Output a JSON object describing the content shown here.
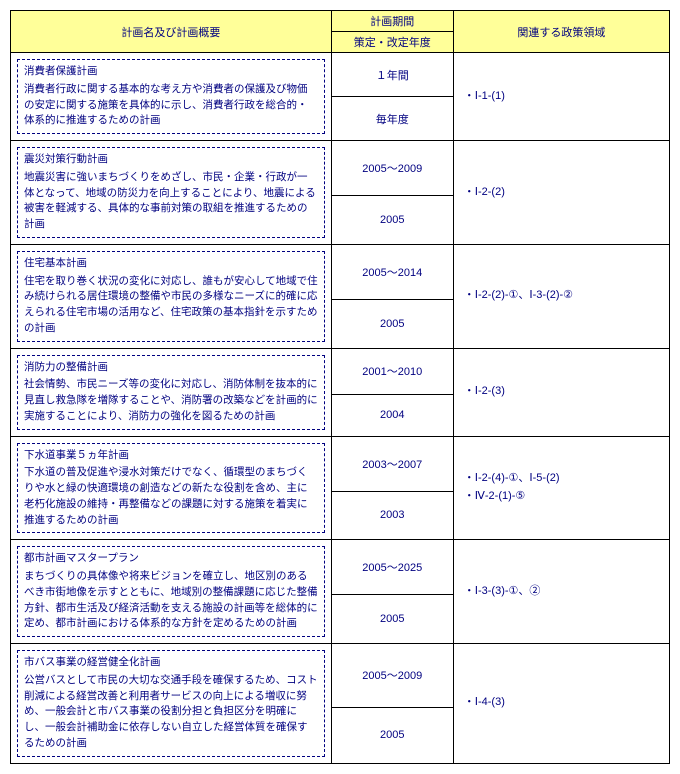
{
  "headers": {
    "col1": "計画名及び計画概要",
    "col2_top": "計画期間",
    "col2_bottom": "策定・改定年度",
    "col3": "関連する政策領域"
  },
  "rows": [
    {
      "title": "消費者保護計画",
      "desc": "消費者行政に関する基本的な考え方や消費者の保護及び物価の安定に関する施策を具体的に示し、消費者行政を総合的・体系的に推進するための計画",
      "period": "１年間",
      "revision": "毎年度",
      "policy": "・Ⅰ-1-(1)"
    },
    {
      "title": "震災対策行動計画",
      "desc": "地震災害に強いまちづくりをめざし、市民・企業・行政が一体となって、地域の防災力を向上することにより、地震による被害を軽減する、具体的な事前対策の取組を推進するための計画",
      "period": "2005～2009",
      "revision": "2005",
      "policy": "・Ⅰ-2-(2)"
    },
    {
      "title": "住宅基本計画",
      "desc": "住宅を取り巻く状況の変化に対応し、誰もが安心して地域で住み続けられる居住環境の整備や市民の多様なニーズに的確に応えられる住宅市場の活用など、住宅政策の基本指針を示すための計画",
      "period": "2005～2014",
      "revision": "2005",
      "policy": "・Ⅰ-2-(2)-①、Ⅰ-3-(2)-②"
    },
    {
      "title": "消防力の整備計画",
      "desc": "社会情勢、市民ニーズ等の変化に対応し、消防体制を抜本的に見直し救急隊を増隊することや、消防署の改築などを計画的に実施することにより、消防力の強化を図るための計画",
      "period": "2001～2010",
      "revision": "2004",
      "policy": "・Ⅰ-2-(3)"
    },
    {
      "title": "下水道事業５ヵ年計画",
      "desc": "下水道の普及促進や浸水対策だけでなく、循環型のまちづくりや水と緑の快適環境の創造などの新たな役割を含め、主に老朽化施設の維持・再整備などの課題に対する施策を着実に推進するための計画",
      "period": "2003～2007",
      "revision": "2003",
      "policy": "・Ⅰ-2-(4)-①、Ⅰ-5-(2)\n・Ⅳ-2-(1)-⑤"
    },
    {
      "title": "都市計画マスタープラン",
      "desc": "まちづくりの具体像や将来ビジョンを確立し、地区別のあるべき市街地像を示すとともに、地域別の整備課題に応じた整備方針、都市生活及び経済活動を支える施設の計画等を総体的に定め、都市計画における体系的な方針を定めるための計画",
      "period": "2005～2025",
      "revision": "2005",
      "policy": "・Ⅰ-3-(3)-①、②"
    },
    {
      "title": "市バス事業の経営健全化計画",
      "desc": "公営バスとして市民の大切な交通手段を確保するため、コスト削減による経営改善と利用者サービスの向上による増収に努め、一般会計と市バス事業の役割分担と負担区分を明確にし、一般会計補助金に依存しない自立した経営体質を確保するための計画",
      "period": "2005～2009",
      "revision": "2005",
      "policy": "・Ⅰ-4-(3)"
    }
  ]
}
